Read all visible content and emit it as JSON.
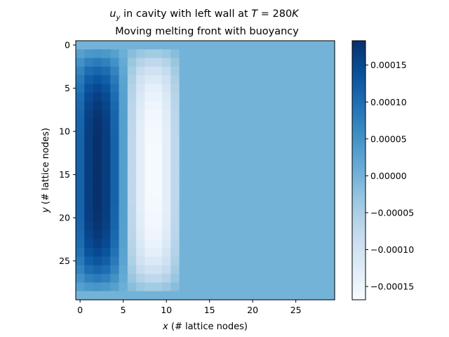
{
  "chart_data": {
    "type": "heatmap",
    "title_line1_prefix": "u",
    "title_line1_subscript": "y",
    "title_line1_middle": " in cavity with left wall at ",
    "title_line1_var": "T",
    "title_line1_eq": " = 280",
    "title_line1_unit": "K",
    "title_line2": "Moving melting front with buoyancy",
    "xlabel_var": "x",
    "xlabel_rest": " (# lattice nodes)",
    "ylabel_var": "y",
    "ylabel_rest": " (# lattice nodes)",
    "grid_size": [
      30,
      30
    ],
    "xlim": [
      -0.5,
      29.5
    ],
    "ylim": [
      29.5,
      -0.5
    ],
    "xticks": [
      0,
      5,
      10,
      15,
      20,
      25
    ],
    "yticks": [
      0,
      5,
      10,
      15,
      20,
      25
    ],
    "colormap": "Blues",
    "colorbar": {
      "vmin": -0.000168,
      "vmax": 0.000183,
      "ticks": [
        -0.00015,
        -0.0001,
        -5e-05,
        0.0,
        5e-05,
        0.0001,
        0.00015
      ],
      "tick_labels": [
        "−0.00015",
        "−0.00010",
        "−0.00005",
        "0.00000",
        "0.00005",
        "0.00010",
        "0.00015"
      ]
    },
    "field_model": {
      "background": 0.0,
      "active_rows": [
        1,
        28
      ],
      "upflow_columns": {
        "start": 0,
        "end": 5,
        "peak_column": 2,
        "peak": 0.000183
      },
      "downflow_columns": {
        "start": 6,
        "end": 11,
        "peak_column": 8.5,
        "peak": -0.000168
      }
    }
  }
}
